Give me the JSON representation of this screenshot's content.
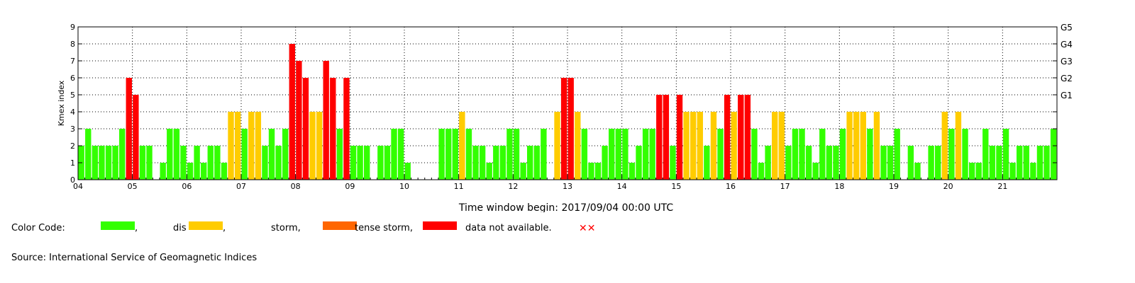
{
  "chart_data": {
    "type": "bar",
    "ylabel": "Kmex index",
    "xlabel": "Time window begin: 2017/09/04 00:00 UTC",
    "ylim": [
      0,
      9
    ],
    "y_ticks": [
      "0",
      "1",
      "2",
      "3",
      "4",
      "5",
      "6",
      "7",
      "8",
      "9"
    ],
    "x_ticks": [
      "04",
      "05",
      "06",
      "07",
      "08",
      "09",
      "10",
      "11",
      "12",
      "13",
      "14",
      "15",
      "16",
      "17",
      "18",
      "19",
      "20",
      "21"
    ],
    "g_scale": [
      {
        "label": "G5",
        "value": 9
      },
      {
        "label": "G4",
        "value": 8
      },
      {
        "label": "G3",
        "value": 7
      },
      {
        "label": "G2",
        "value": 6
      },
      {
        "label": "G1",
        "value": 5
      }
    ],
    "grid": true,
    "day_start": 4,
    "intervals_per_day": 8,
    "values": [
      2,
      3,
      2,
      2,
      2,
      2,
      3,
      6,
      5,
      2,
      2,
      0,
      1,
      3,
      3,
      2,
      1,
      2,
      1,
      2,
      2,
      1,
      4,
      4,
      3,
      4,
      4,
      2,
      3,
      2,
      3,
      8,
      7,
      6,
      4,
      4,
      7,
      6,
      3,
      6,
      2,
      2,
      2,
      0,
      2,
      2,
      3,
      3,
      1,
      0,
      0,
      0,
      0,
      3,
      3,
      3,
      4,
      3,
      2,
      2,
      1,
      2,
      2,
      3,
      3,
      1,
      2,
      2,
      3,
      0,
      4,
      6,
      6,
      4,
      3,
      1,
      1,
      2,
      3,
      3,
      3,
      1,
      2,
      3,
      3,
      5,
      5,
      2,
      5,
      4,
      4,
      4,
      2,
      4,
      3,
      5,
      4,
      5,
      5,
      3,
      1,
      2,
      4,
      4,
      2,
      3,
      3,
      2,
      1,
      3,
      2,
      2,
      3,
      4,
      4,
      4,
      3,
      4,
      2,
      2,
      3,
      0,
      2,
      1,
      0,
      2,
      2,
      4,
      3,
      4,
      3,
      1,
      1,
      3,
      2,
      2,
      3,
      1,
      2,
      2,
      1,
      2,
      2,
      3
    ],
    "colors": {
      "quiet": "#33ff00",
      "disturbed": "#ffcc00",
      "storm": "#ff0000",
      "intense_storm": "#ff6600"
    }
  },
  "legend": {
    "color_code": "Color Code:",
    "quiet_suffix": ",",
    "disturbed_label": "dis",
    "disturbed_suffix": ",",
    "storm_label": "storm,",
    "intense_label": "tense storm,",
    "na_label": "data not available.",
    "na_mark": "✕✕"
  },
  "source": "Source: International Service of Geomagnetic Indices"
}
